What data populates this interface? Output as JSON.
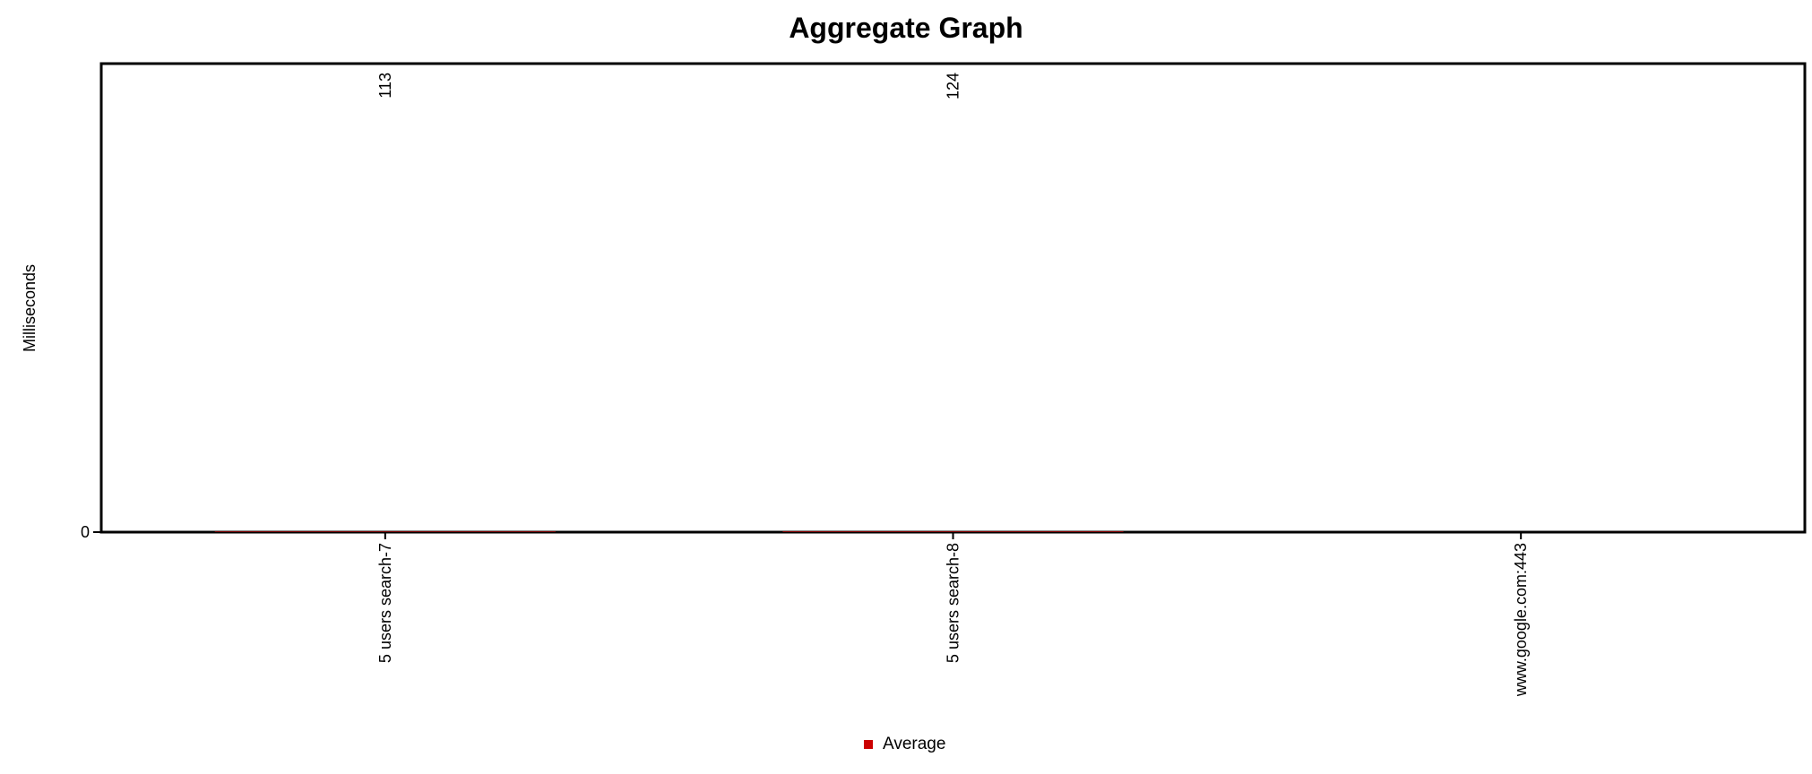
{
  "chart_data": {
    "type": "bar",
    "title": "Aggregate Graph",
    "xlabel": "",
    "ylabel": "Milliseconds",
    "categories": [
      "5 users search-7",
      "5 users search-8",
      "www.google.com:443"
    ],
    "series": [
      {
        "name": "Average",
        "color": "#cc0000",
        "values": [
          113,
          124,
          null
        ]
      }
    ],
    "data_labels": [
      "113",
      "124",
      ""
    ],
    "y_tick_labels": [
      "0"
    ],
    "ylim": [
      0,
      100000
    ],
    "grid": false,
    "legend_position": "bottom-center"
  }
}
